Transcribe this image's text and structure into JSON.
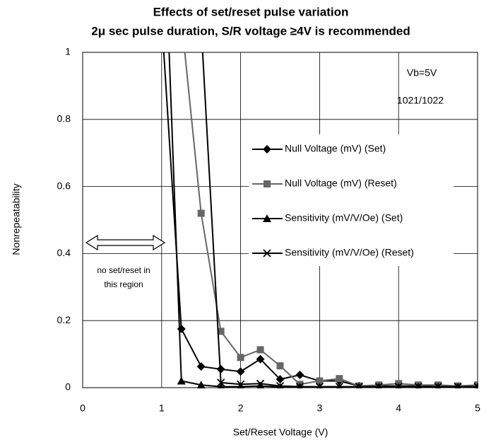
{
  "chart_data": {
    "type": "line",
    "title": "Effects of set/reset pulse variation",
    "subtitle": "2μ sec pulse duration, S/R voltage ≥4V is recommended",
    "x_label": "Set/Reset Voltage (V)",
    "y_label": "Nonrepeatability",
    "x": [
      1,
      1.25,
      1.5,
      1.75,
      2,
      2.25,
      2.5,
      2.75,
      3,
      3.25,
      3.5,
      3.75,
      4,
      4.25,
      4.5,
      4.75,
      5
    ],
    "series": [
      {
        "name": "Null Voltage (mV) (Set)",
        "color": "#000000",
        "marker": "diamond",
        "values": [
          1.1,
          0.175,
          0.063,
          0.055,
          0.048,
          0.085,
          0.025,
          0.038,
          0.02,
          0.02,
          0.005,
          0.005,
          0.005,
          0.005,
          0.005,
          0.003,
          0.003
        ]
      },
      {
        "name": "Null Voltage (mV) (Reset)",
        "color": "#666666",
        "marker": "square",
        "values": [
          null,
          1.1,
          0.52,
          0.168,
          0.09,
          0.113,
          0.065,
          0.01,
          0.02,
          0.027,
          0.005,
          0.008,
          0.012,
          0.008,
          0.008,
          0.005,
          0.008
        ]
      },
      {
        "name": "Sensitivity (mV/V/Oe) (Set)",
        "color": "#000000",
        "marker": "triangle",
        "values": [
          1.6,
          0.02,
          0.008,
          0.003,
          0.003,
          0.005,
          0.002,
          0.002,
          0.002,
          0.002,
          0.002,
          0.002,
          0.002,
          0.002,
          0.002,
          0.002,
          0.002
        ]
      },
      {
        "name": "Sensitivity (mV/V/Oe) (Reset)",
        "color": "#000000",
        "marker": "x",
        "values": [
          null,
          null,
          1.08,
          0.015,
          0.01,
          0.012,
          0.005,
          0.003,
          0.003,
          0.003,
          0.003,
          0.003,
          0.003,
          0.003,
          0.003,
          0.003,
          0.003
        ]
      }
    ],
    "xlim": [
      0,
      5
    ],
    "xticks": [
      0,
      1,
      2,
      3,
      4,
      5
    ],
    "ylim": [
      0,
      1
    ],
    "yticks": [
      0,
      0.2,
      0.4,
      0.6,
      0.8,
      1
    ],
    "grid": true,
    "annotations": [
      "Vb=5V",
      "1021/1022",
      "no set/reset in",
      "this region"
    ]
  }
}
